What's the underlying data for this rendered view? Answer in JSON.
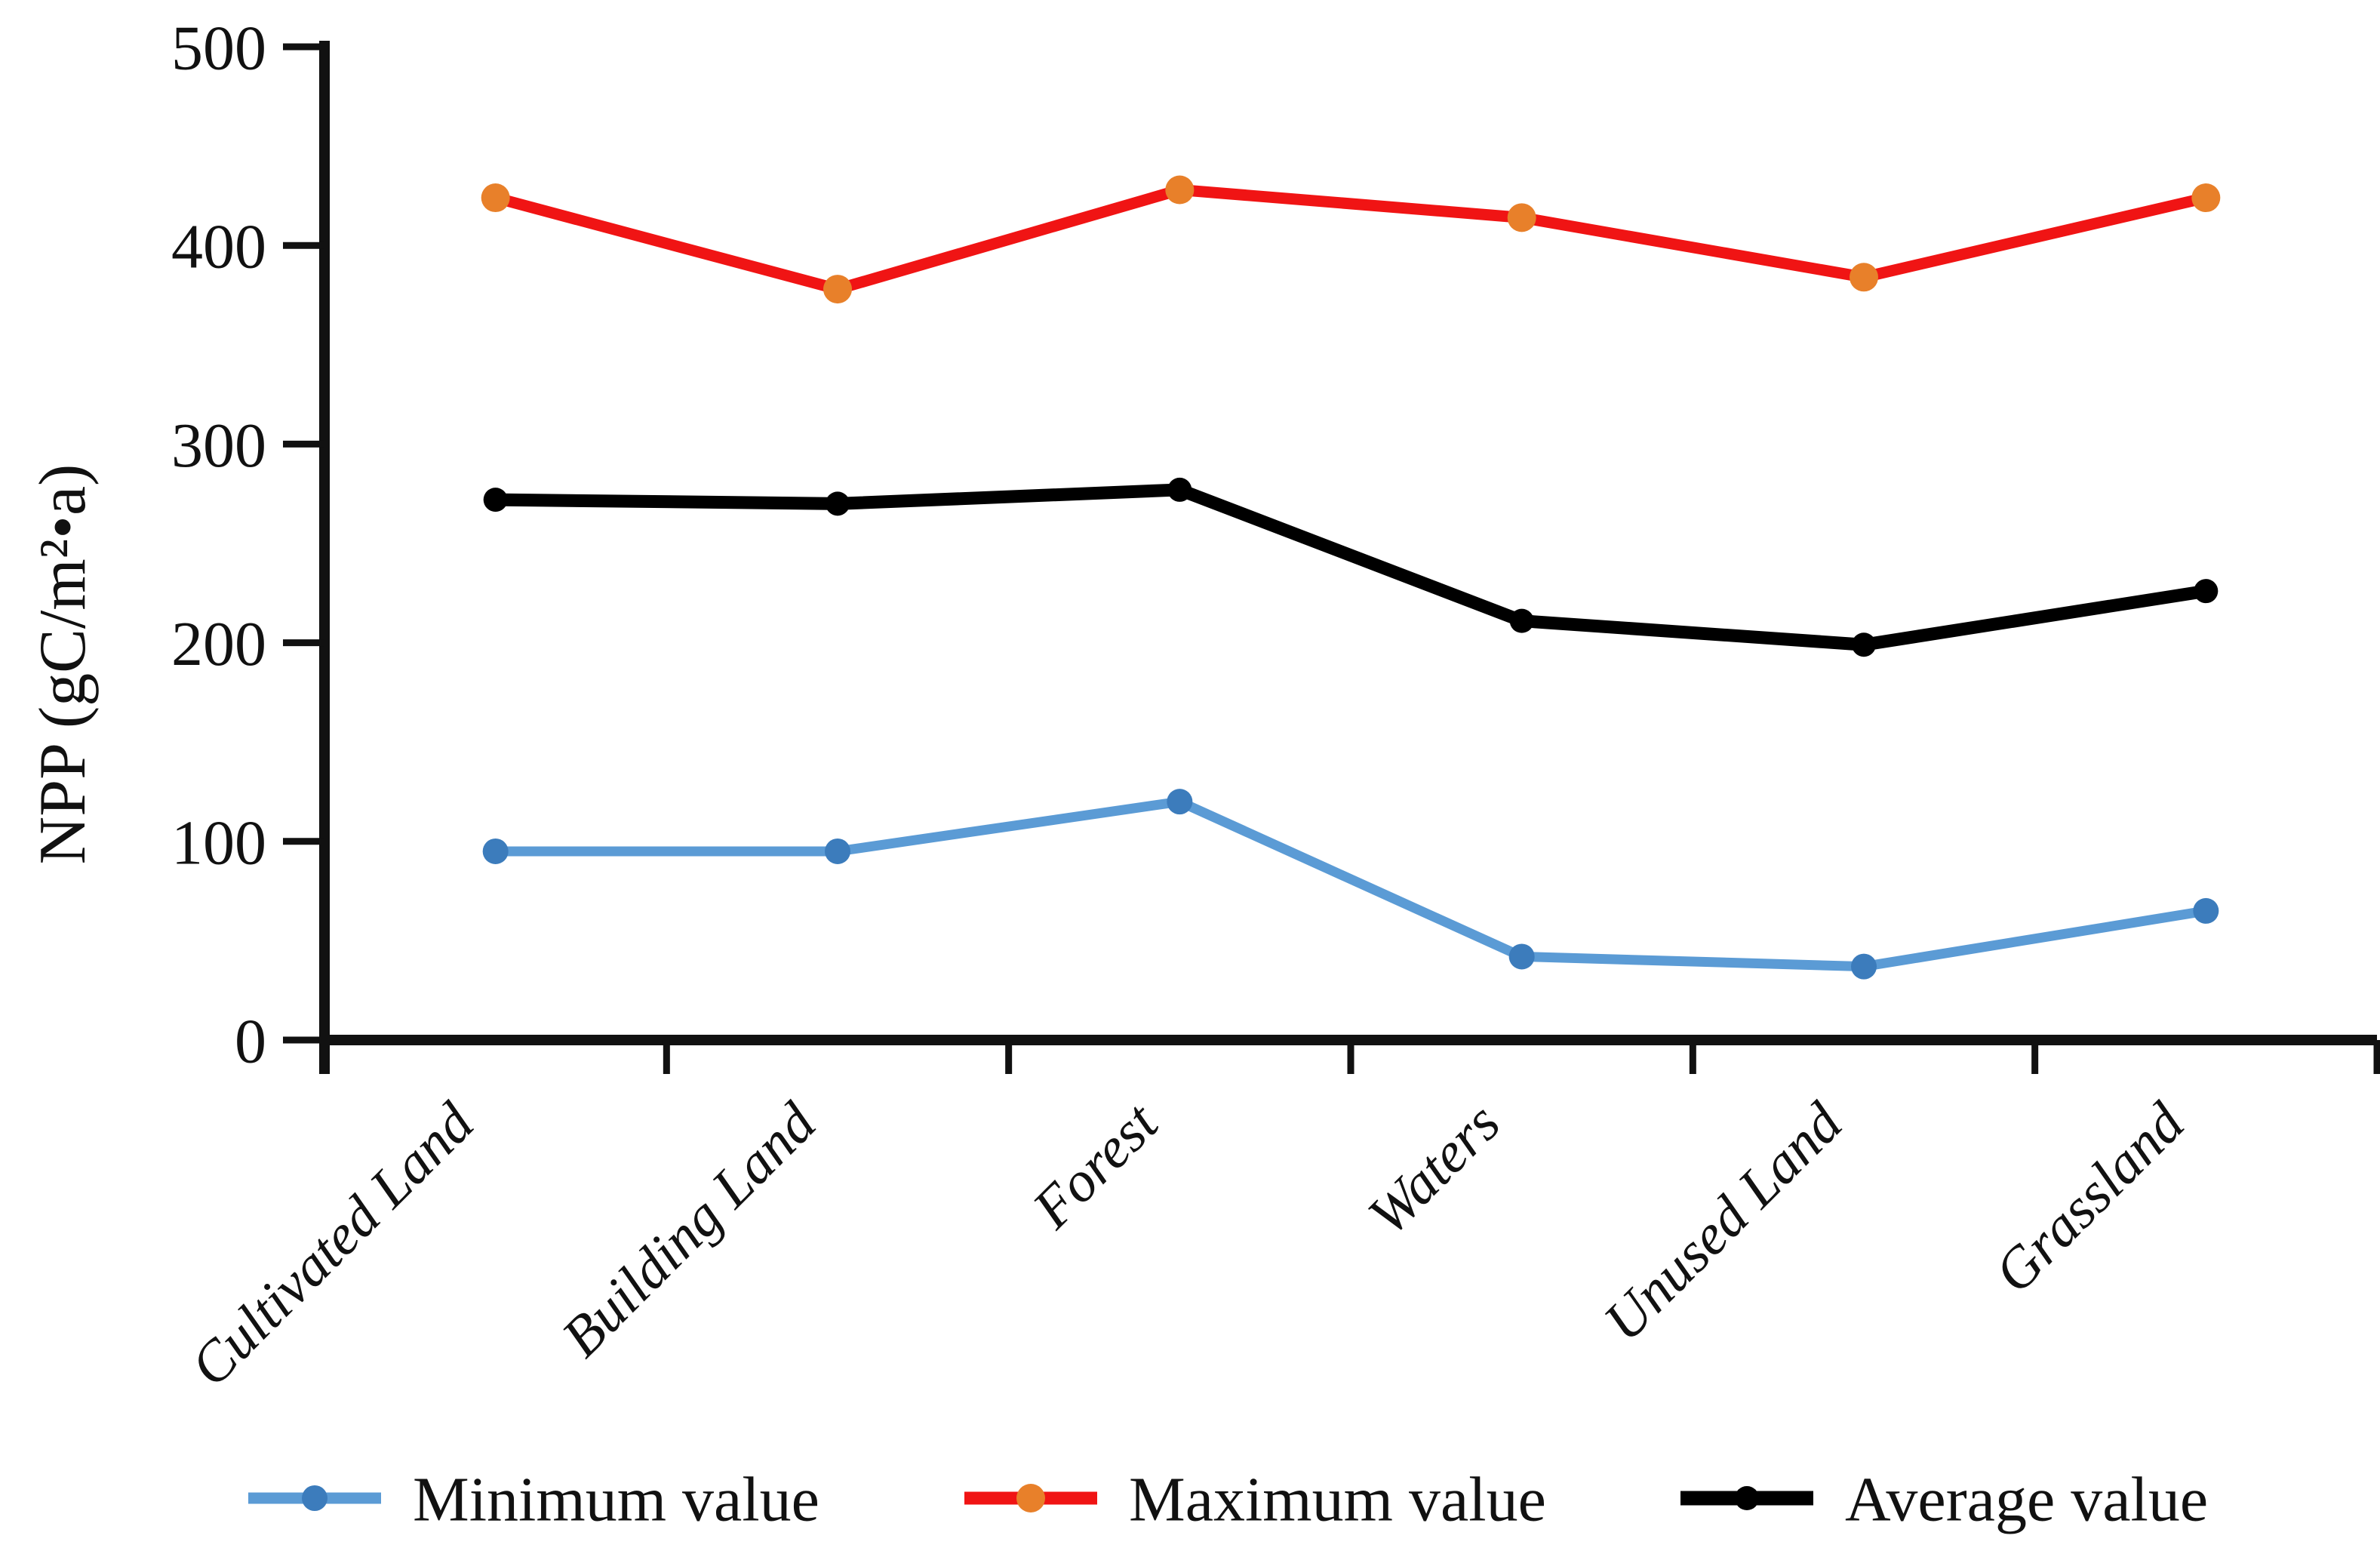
{
  "page": {
    "background": "#ffffff"
  },
  "chart_data": {
    "type": "line",
    "title": "",
    "ylabel": "NPP (gC/m²•a)",
    "xlabel": "",
    "categories": [
      "Cultivated Land",
      "Building Land",
      "Forest",
      "Waters",
      "Unused Land",
      "Grassland"
    ],
    "series": [
      {
        "name": "Minimum value",
        "line_color": "#5B9BD5",
        "marker_color": "#3C7CBC",
        "values": [
          95,
          95,
          120,
          42,
          37,
          65
        ]
      },
      {
        "name": "Maximum value",
        "line_color": "#F01414",
        "marker_color": "#E8802A",
        "values": [
          424,
          378,
          428,
          414,
          384,
          424
        ]
      },
      {
        "name": "Average value",
        "line_color": "#000000",
        "marker_color": "#000000",
        "values": [
          272,
          270,
          277,
          211,
          199,
          226
        ]
      }
    ],
    "ylim": [
      0,
      500
    ],
    "yticks": [
      0,
      100,
      200,
      300,
      400,
      500
    ],
    "ytick_step": 100,
    "grid": "off",
    "legend_position": "bottom",
    "axis_color": "#111111",
    "tick_label_color": "#111111"
  }
}
